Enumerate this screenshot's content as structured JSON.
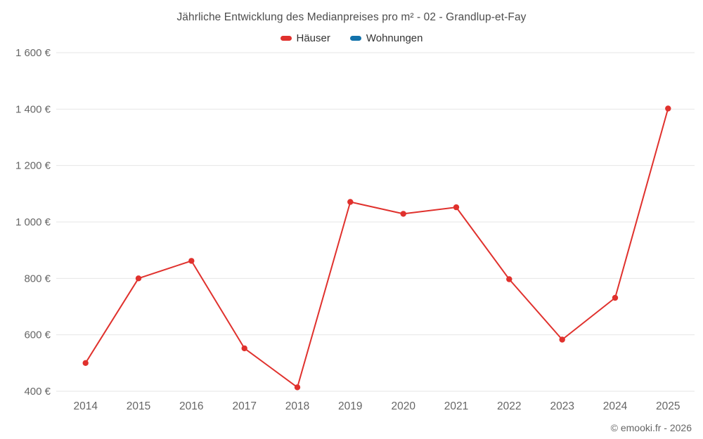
{
  "header": {
    "title": "Jährliche Entwicklung des Medianpreises pro m² - 02 - Grandlup-et-Fay"
  },
  "legend": {
    "items": [
      {
        "label": "Häuser",
        "color": "#e0312d"
      },
      {
        "label": "Wohnungen",
        "color": "#1272ab"
      }
    ]
  },
  "footer": {
    "copyright": "© emooki.fr - 2026"
  },
  "chart_data": {
    "type": "line",
    "title": "Jährliche Entwicklung des Medianpreises pro m² - 02 - Grandlup-et-Fay",
    "xlabel": "",
    "ylabel": "",
    "categories": [
      "2014",
      "2015",
      "2016",
      "2017",
      "2018",
      "2019",
      "2020",
      "2021",
      "2022",
      "2023",
      "2024",
      "2025"
    ],
    "series": [
      {
        "name": "Häuser",
        "color": "#e0312d",
        "values": [
          500,
          800,
          862,
          552,
          414,
          1071,
          1029,
          1052,
          797,
          583,
          731,
          1402
        ]
      },
      {
        "name": "Wohnungen",
        "color": "#1272ab",
        "values": []
      }
    ],
    "ylim": [
      400,
      1600
    ],
    "y_tick_step": 200,
    "y_tick_labels": [
      "400 €",
      "600 €",
      "800 €",
      "1 000 €",
      "1 200 €",
      "1 400 €",
      "1 600 €"
    ],
    "grid": true,
    "legend_position": "top"
  }
}
